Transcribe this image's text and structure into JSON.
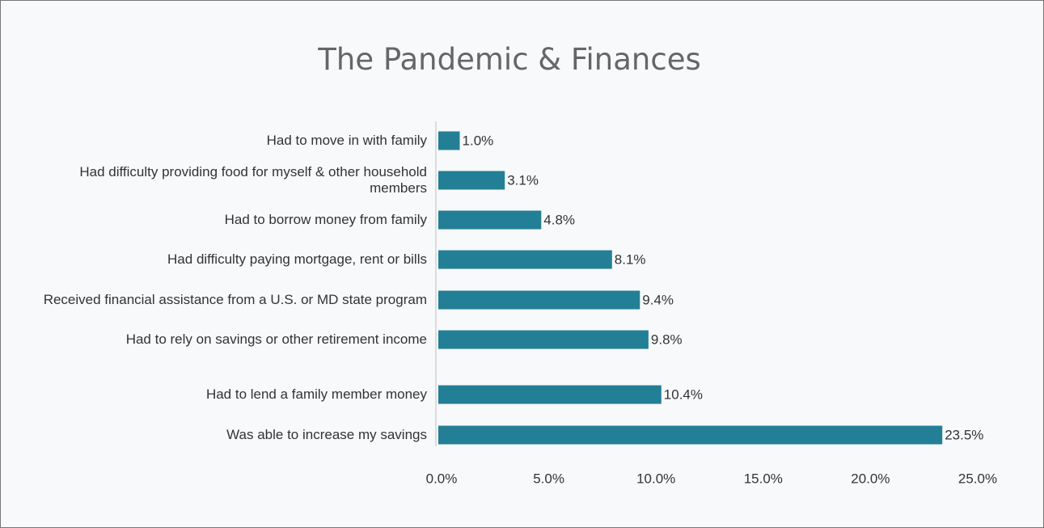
{
  "chart_data": {
    "type": "bar",
    "orientation": "horizontal",
    "title": "The Pandemic & Finances",
    "categories": [
      "Had to move in with family",
      "Had difficulty providing food for myself & other household members",
      "Had to borrow money from family",
      "Had difficulty paying mortgage, rent or bills",
      "Received financial assistance from a U.S. or MD state program",
      "Had to rely on savings or other retirement income",
      "Had to lend a family member money",
      "Was able to increase my savings"
    ],
    "values": [
      1.0,
      3.1,
      4.8,
      8.1,
      9.4,
      9.8,
      10.4,
      23.5
    ],
    "value_labels": [
      "1.0%",
      "3.1%",
      "4.8%",
      "8.1%",
      "9.4%",
      "9.8%",
      "10.4%",
      "23.5%"
    ],
    "color": "#237f96",
    "xlim": [
      0,
      25
    ],
    "xticks": [
      {
        "value": 0,
        "label": "0.0%"
      },
      {
        "value": 5,
        "label": "5.0%"
      },
      {
        "value": 10,
        "label": "10.0%"
      },
      {
        "value": 15,
        "label": "15.0%"
      },
      {
        "value": 20,
        "label": "20.0%"
      },
      {
        "value": 25,
        "label": "25.0%"
      }
    ],
    "grid": false
  }
}
